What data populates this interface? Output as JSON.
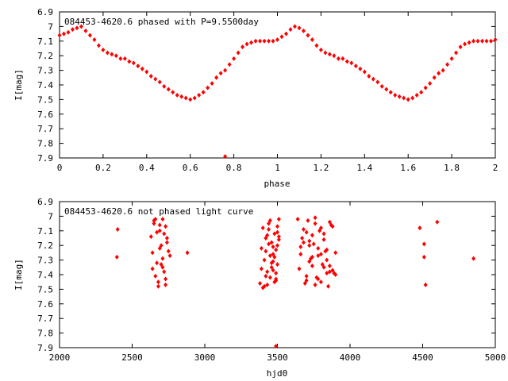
{
  "chart_data": [
    {
      "type": "scatter",
      "title": "084453-4620.6 phased with P=9.5500day",
      "xlabel": "phase",
      "ylabel": "I[mag]",
      "xlim": [
        0,
        2
      ],
      "ylim": [
        6.9,
        7.9
      ],
      "y_inverted": true,
      "grid": false,
      "marker_color": "#ff0000",
      "x_ticks": [
        "0",
        "0.2",
        "0.4",
        "0.6",
        "0.8",
        "1",
        "1.2",
        "1.4",
        "1.6",
        "1.8",
        "2"
      ],
      "y_ticks": [
        "6.9",
        "7",
        "7.1",
        "7.2",
        "7.3",
        "7.4",
        "7.5",
        "7.6",
        "7.7",
        "7.8",
        "7.9"
      ],
      "series": [
        {
          "x": [
            0.0,
            0.02,
            0.04,
            0.06,
            0.08,
            0.1,
            0.12,
            0.14,
            0.16,
            0.18,
            0.2,
            0.22,
            0.24,
            0.26,
            0.28,
            0.3,
            0.32,
            0.34,
            0.36,
            0.38,
            0.4,
            0.42,
            0.44,
            0.46,
            0.48,
            0.5,
            0.52,
            0.54,
            0.56,
            0.58,
            0.6,
            0.62,
            0.64,
            0.66,
            0.68,
            0.7,
            0.72,
            0.74,
            0.76,
            0.78,
            0.8,
            0.82,
            0.84,
            0.86,
            0.88,
            0.9,
            0.92,
            0.94,
            0.96,
            0.98,
            1.0,
            1.02,
            1.04,
            1.06,
            1.08,
            1.1,
            1.12,
            1.14,
            1.16,
            1.18,
            1.2,
            1.22,
            1.24,
            1.26,
            1.28,
            1.3,
            1.32,
            1.34,
            1.36,
            1.38,
            1.4,
            1.42,
            1.44,
            1.46,
            1.48,
            1.5,
            1.52,
            1.54,
            1.56,
            1.58,
            1.6,
            1.62,
            1.64,
            1.66,
            1.68,
            1.7,
            1.72,
            1.74,
            1.76,
            1.78,
            1.8,
            1.82,
            1.84,
            1.86,
            1.88,
            1.9,
            1.92,
            1.94,
            1.96,
            1.98,
            2.0,
            0.76
          ],
          "y": [
            7.06,
            7.05,
            7.04,
            7.02,
            7.01,
            7.0,
            7.03,
            7.06,
            7.09,
            7.13,
            7.16,
            7.18,
            7.19,
            7.2,
            7.22,
            7.22,
            7.24,
            7.25,
            7.27,
            7.29,
            7.31,
            7.34,
            7.36,
            7.38,
            7.41,
            7.43,
            7.45,
            7.47,
            7.48,
            7.49,
            7.5,
            7.49,
            7.47,
            7.45,
            7.42,
            7.39,
            7.35,
            7.32,
            7.3,
            7.26,
            7.22,
            7.18,
            7.14,
            7.12,
            7.11,
            7.1,
            7.1,
            7.1,
            7.1,
            7.1,
            7.09,
            7.07,
            7.05,
            7.02,
            7.0,
            7.01,
            7.03,
            7.06,
            7.09,
            7.13,
            7.16,
            7.18,
            7.19,
            7.2,
            7.22,
            7.22,
            7.24,
            7.25,
            7.27,
            7.29,
            7.31,
            7.34,
            7.36,
            7.38,
            7.41,
            7.43,
            7.45,
            7.47,
            7.48,
            7.49,
            7.5,
            7.49,
            7.47,
            7.45,
            7.42,
            7.39,
            7.35,
            7.32,
            7.3,
            7.26,
            7.22,
            7.18,
            7.14,
            7.12,
            7.11,
            7.1,
            7.1,
            7.1,
            7.1,
            7.1,
            7.09,
            7.89
          ]
        }
      ]
    },
    {
      "type": "scatter",
      "title": "084453-4620.6 not phased light curve",
      "xlabel": "hjd0",
      "ylabel": "I[mag]",
      "xlim": [
        2000,
        5000
      ],
      "ylim": [
        6.9,
        7.9
      ],
      "y_inverted": true,
      "grid": false,
      "marker_color": "#ff0000",
      "x_ticks": [
        "2000",
        "2500",
        "3000",
        "3500",
        "4000",
        "4500",
        "5000"
      ],
      "y_ticks": [
        "6.9",
        "7",
        "7.1",
        "7.2",
        "7.3",
        "7.4",
        "7.5",
        "7.6",
        "7.7",
        "7.8",
        "7.9"
      ],
      "series": [
        {
          "x": [
            2400,
            2395,
            2630,
            2640,
            2650,
            2660,
            2670,
            2680,
            2690,
            2700,
            2710,
            2720,
            2730,
            2740,
            2750,
            2640,
            2660,
            2680,
            2700,
            2720,
            2740,
            2760,
            2650,
            2670,
            2690,
            2710,
            2730,
            2690,
            2710,
            2730,
            2880,
            3380,
            3390,
            3400,
            3410,
            3420,
            3430,
            3440,
            3450,
            3460,
            3470,
            3480,
            3490,
            3500,
            3510,
            3390,
            3410,
            3430,
            3450,
            3470,
            3490,
            3510,
            3400,
            3420,
            3440,
            3460,
            3480,
            3500,
            3420,
            3440,
            3460,
            3480,
            3500,
            3430,
            3450,
            3470,
            3490,
            3510,
            3470,
            3490,
            3500,
            3640,
            3660,
            3680,
            3700,
            3720,
            3740,
            3760,
            3780,
            3800,
            3820,
            3840,
            3860,
            3880,
            3900,
            3650,
            3670,
            3690,
            3710,
            3730,
            3750,
            3770,
            3790,
            3810,
            3830,
            3850,
            3870,
            3890,
            3660,
            3700,
            3740,
            3780,
            3820,
            3860,
            3900,
            3680,
            3720,
            3760,
            3800,
            3840,
            3880,
            3700,
            3740,
            3780,
            3820,
            3860,
            3720,
            3760,
            3800,
            3840,
            4480,
            4510,
            4520,
            4600,
            4510,
            4850,
            3490
          ],
          "y": [
            7.09,
            7.28,
            7.14,
            7.25,
            7.05,
            7.02,
            7.32,
            7.45,
            7.1,
            7.2,
            7.02,
            7.38,
            7.07,
            7.15,
            7.24,
            7.36,
            7.41,
            7.48,
            7.33,
            7.12,
            7.18,
            7.27,
            7.03,
            7.11,
            7.22,
            7.29,
            7.43,
            7.06,
            7.35,
            7.47,
            7.25,
            7.46,
            7.22,
            7.08,
            7.3,
            7.15,
            7.38,
            7.05,
            7.42,
            7.18,
            7.26,
            7.12,
            7.44,
            7.33,
            7.02,
            7.36,
            7.48,
            7.13,
            7.27,
            7.21,
            7.39,
            7.16,
            7.49,
            7.24,
            7.09,
            7.32,
            7.45,
            7.07,
            7.41,
            7.19,
            7.35,
            7.28,
            7.11,
            7.47,
            7.03,
            7.37,
            7.23,
            7.14,
            7.31,
            7.43,
            7.2,
            7.02,
            7.26,
            7.09,
            7.41,
            7.17,
            7.34,
            7.05,
            7.22,
            7.45,
            7.12,
            7.3,
            7.38,
            7.07,
            7.25,
            7.36,
            7.15,
            7.46,
            7.03,
            7.29,
            7.19,
            7.42,
            7.1,
            7.33,
            7.24,
            7.48,
            7.06,
            7.39,
            7.21,
            7.44,
            7.13,
            7.27,
            7.35,
            7.04,
            7.4,
            7.18,
            7.31,
            7.47,
            7.08,
            7.23,
            7.37,
            7.11,
            7.28,
            7.43,
            7.16,
            7.34,
            7.2,
            7.01,
            7.26,
            7.39,
            7.08,
            7.19,
            7.47,
            7.04,
            7.28,
            7.29,
            7.89
          ]
        }
      ]
    }
  ]
}
